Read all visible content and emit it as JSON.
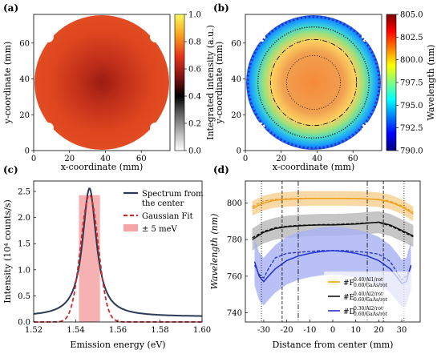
{
  "panels": {
    "a": {
      "label": "(a)"
    },
    "b": {
      "label": "(b)"
    },
    "c": {
      "label": "(c)"
    },
    "d": {
      "label": "(d)"
    }
  },
  "colors": {
    "spectrum": "#2b3a55",
    "gaussian": "#d42a2a",
    "band_fill": "#f4a4a4",
    "series_F": "#f0a020",
    "series_E": "#111111",
    "series_D": "#2030d0"
  },
  "chart_data": [
    {
      "panel": "a",
      "type": "heatmap",
      "title": "",
      "xlabel": "x-coordinate (mm)",
      "ylabel": "y-coordinate (mm)",
      "x_ticks": [
        "0",
        "20",
        "40",
        "60"
      ],
      "y_ticks": [
        "0",
        "20",
        "40",
        "60"
      ],
      "xlim": [
        0,
        76
      ],
      "ylim": [
        0,
        76
      ],
      "colorbar": {
        "label": "Integrated intensity (a.u.)",
        "range": [
          0.0,
          1.0
        ],
        "ticks": [
          "0.0",
          "0.2",
          "0.4",
          "0.6",
          "0.8",
          "1.0"
        ],
        "colormap": "inferno"
      },
      "wafer": {
        "center_x": 38,
        "center_y": 38,
        "diameter_mm": 76,
        "center_value": 0.52,
        "edge_value": 0.66
      }
    },
    {
      "panel": "b",
      "type": "heatmap",
      "title": "",
      "xlabel": "x-coordinate (mm)",
      "ylabel": "y-coordinate (mm)",
      "x_ticks": [
        "0",
        "20",
        "40",
        "60"
      ],
      "y_ticks": [
        "0",
        "20",
        "40",
        "60"
      ],
      "xlim": [
        0,
        76
      ],
      "ylim": [
        0,
        76
      ],
      "colorbar": {
        "label": "Wavelength (nm)",
        "range": [
          790.0,
          805.0
        ],
        "ticks": [
          "790.0",
          "792.5",
          "795.0",
          "797.5",
          "800.0",
          "802.5",
          "805.0"
        ],
        "colormap": "jet"
      },
      "wafer": {
        "center_x": 38,
        "center_y": 38,
        "diameter_mm": 76,
        "center_value": 802.5,
        "edge_value": 792.5
      },
      "contours_radius_mm": [
        15,
        24,
        31
      ]
    },
    {
      "panel": "c",
      "type": "line",
      "title": "",
      "xlabel": "Emission energy (eV)",
      "ylabel": "Intensity (10⁴ counts/s)",
      "xlim": [
        1.52,
        1.6
      ],
      "ylim": [
        0,
        2.7
      ],
      "x_ticks": [
        "1.52",
        "1.54",
        "1.56",
        "1.58",
        "1.60"
      ],
      "y_ticks": [
        "0.0",
        "0.5",
        "1.0",
        "1.5",
        "2.0",
        "2.5"
      ],
      "legend_position": "top-right",
      "series": [
        {
          "name": "Spectrum from the center",
          "name_line1": "Spectrum from",
          "name_line2": "the center",
          "peak_x": 1.5465,
          "peak_y": 2.56,
          "fwhm": 0.008,
          "baseline": 0.1
        },
        {
          "name": "Gaussian Fit",
          "peak_x": 1.5465,
          "peak_y": 2.43,
          "sigma": 0.0042
        }
      ],
      "band": {
        "name": "± 5 meV",
        "from": 1.5415,
        "to": 1.5515
      }
    },
    {
      "panel": "d",
      "type": "line",
      "title": "",
      "xlabel": "Distance from center (mm)",
      "ylabel": "Wavelength (nm)",
      "xlim": [
        -38,
        38
      ],
      "ylim": [
        735,
        812
      ],
      "x_ticks": [
        "-30",
        "-20",
        "-10",
        "0",
        "10",
        "20",
        "30"
      ],
      "y_ticks": [
        "740",
        "760",
        "780",
        "800"
      ],
      "legend_position": "bottom-right",
      "vlines_dotted": [
        -31,
        31
      ],
      "vlines_dashdot": [
        -15,
        15
      ],
      "vlines_dashed": [
        -22,
        22
      ],
      "series": [
        {
          "name": "#F 0.40/Al1/rot 0.60/GaAs/rot",
          "prefix": "#F",
          "sup": "0.40/Al1/rot",
          "sub": "0.60/GaAs/rot",
          "x": [
            -35,
            -30,
            -25,
            -20,
            -15,
            -10,
            -5,
            0,
            5,
            10,
            15,
            20,
            25,
            30,
            35
          ],
          "y": [
            797,
            800,
            801.5,
            802,
            802.3,
            802.5,
            802.5,
            802.5,
            802.5,
            802.4,
            802.2,
            801.8,
            800.5,
            798,
            794
          ],
          "y_dashed": [
            798,
            801,
            802,
            802.3,
            802.5,
            802.6,
            802.6,
            802.6,
            802.6,
            802.5,
            802.3,
            802,
            801,
            798.5,
            795
          ],
          "band": 4
        },
        {
          "name": "#E 0.40/Al2/rot 0.60/GaAs/rot",
          "prefix": "#E",
          "sup": "0.40/Al2/rot",
          "sub": "0.60/GaAs/rot",
          "x": [
            -35,
            -30,
            -25,
            -20,
            -15,
            -10,
            -5,
            0,
            5,
            10,
            15,
            20,
            25,
            30,
            35
          ],
          "y": [
            780,
            784,
            786,
            787,
            787.5,
            787.8,
            788,
            788,
            788.2,
            788.5,
            789,
            789.5,
            788,
            785,
            782
          ],
          "y_dashed": [
            781,
            784.5,
            786.5,
            787.3,
            787.8,
            788,
            788.2,
            788.3,
            788.5,
            788.8,
            789.2,
            789.3,
            787.5,
            784.5,
            781.5
          ],
          "band": 6
        },
        {
          "name": "#D 0.30/Al2/rot 0.60/GaAs/rot",
          "prefix": "#D",
          "sup": "0.30/Al2/rot",
          "sub": "0.60/GaAs/rot",
          "x": [
            -34,
            -32,
            -30,
            -28,
            -25,
            -20,
            -15,
            -10,
            -5,
            0,
            5,
            10,
            15,
            20,
            25,
            28,
            30,
            32,
            34
          ],
          "y": [
            768,
            760,
            757,
            760,
            764,
            768.5,
            771,
            772.5,
            773.5,
            774,
            773.5,
            772.5,
            771,
            768.5,
            764,
            759.5,
            756,
            757,
            766
          ],
          "y_dashed": [
            766,
            761,
            759,
            764,
            770,
            772.5,
            773,
            773.5,
            774,
            774,
            774,
            773.5,
            773,
            772,
            768,
            762,
            758,
            760,
            765
          ],
          "band": 13
        }
      ]
    }
  ]
}
